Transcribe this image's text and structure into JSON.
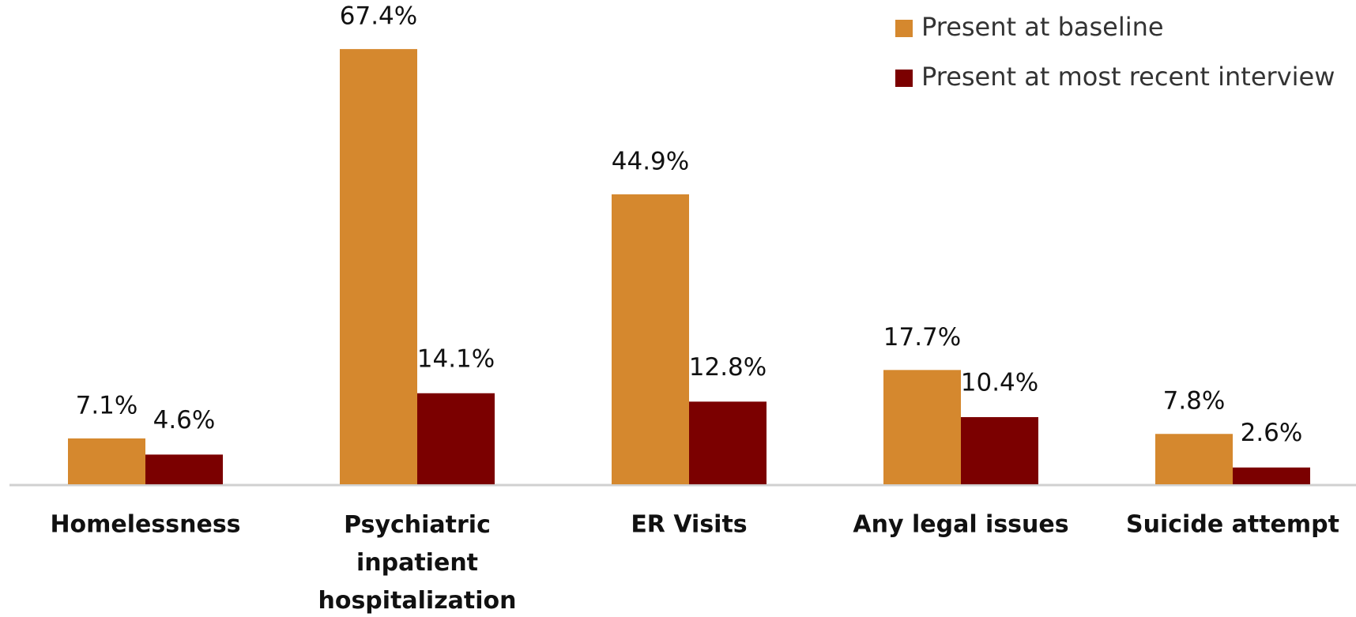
{
  "chart_data": {
    "type": "bar",
    "categories": [
      "Homelessness",
      "Psychiatric inpatient hospitalization",
      "ER Visits",
      "Any legal issues",
      "Suicide attempt"
    ],
    "series": [
      {
        "name": "Present at baseline",
        "color": "#d5882e",
        "values": [
          7.1,
          67.4,
          44.9,
          17.7,
          7.8
        ],
        "value_labels": [
          "7.1%",
          "67.4%",
          "44.9%",
          "17.7%",
          "7.8%"
        ]
      },
      {
        "name": "Present at most recent interview",
        "color": "#7b0000",
        "values": [
          4.6,
          14.1,
          12.8,
          10.4,
          2.6
        ],
        "value_labels": [
          "4.6%",
          "14.1%",
          "12.8%",
          "10.4%",
          "2.6%"
        ]
      }
    ],
    "ylim": [
      0,
      75
    ]
  }
}
